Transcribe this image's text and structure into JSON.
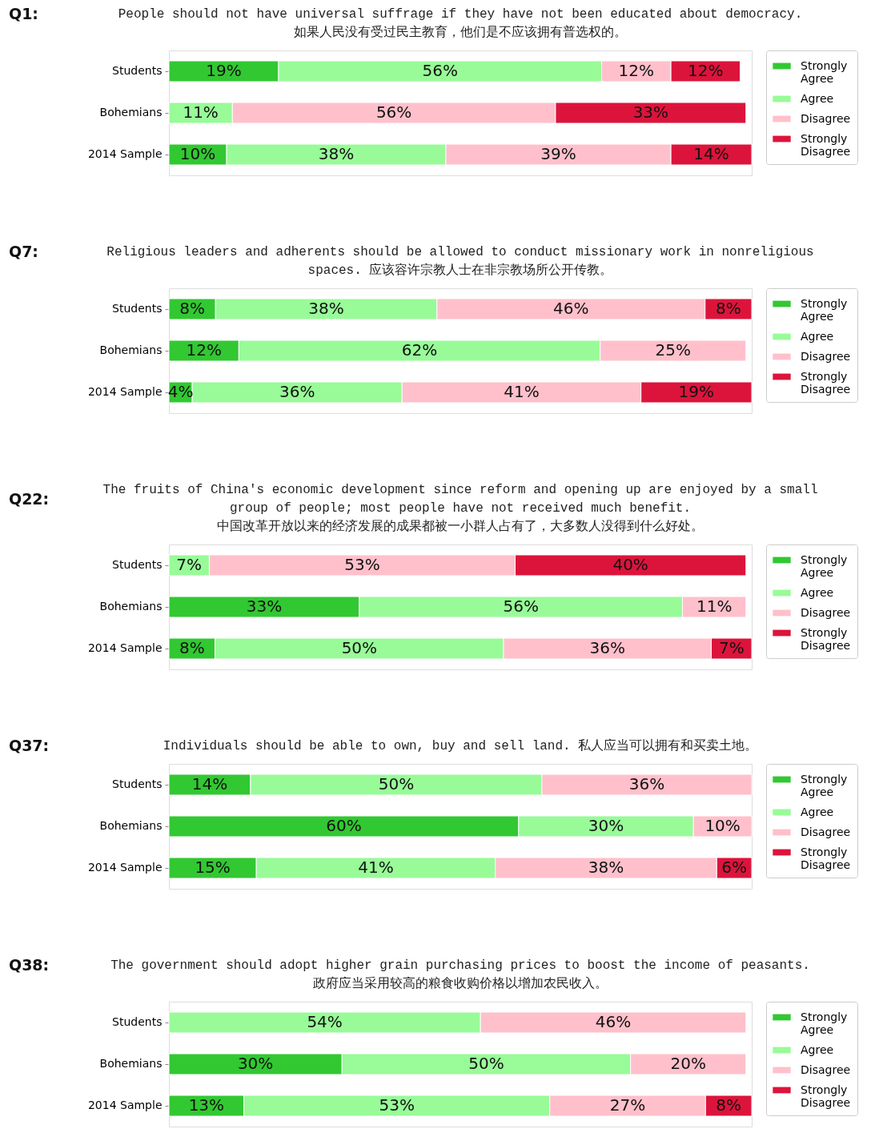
{
  "chart_data": [
    {
      "type": "bar",
      "orientation": "horizontal",
      "stacked": true,
      "legend": "right",
      "grid": false,
      "title": "Q1:",
      "subtitle": "People should not have universal suffrage if they have not been educated about democracy.\n如果人民没有受过民主教育，他们是不应该拥有普选权的。",
      "categories": [
        "Students",
        "Bohemians",
        "2014 Sample"
      ],
      "series": [
        {
          "name": "Strongly Agree",
          "color": "#32c832",
          "values": [
            19,
            null,
            10
          ],
          "value_labels": [
            "19%",
            null,
            "10%"
          ]
        },
        {
          "name": "Agree",
          "color": "#98fb98",
          "values": [
            56,
            11,
            38
          ],
          "value_labels": [
            "56%",
            "11%",
            "38%"
          ]
        },
        {
          "name": "Disagree",
          "color": "#ffc0cb",
          "values": [
            12,
            56,
            39
          ],
          "value_labels": [
            "12%",
            "56%",
            "39%"
          ]
        },
        {
          "name": "Strongly Disagree",
          "color": "#dc143c",
          "values": [
            12,
            33,
            14
          ],
          "value_labels": [
            "12%",
            "33%",
            "14%"
          ]
        }
      ]
    },
    {
      "type": "bar",
      "orientation": "horizontal",
      "stacked": true,
      "legend": "right",
      "grid": false,
      "title": "Q7:",
      "subtitle": "Religious leaders and adherents should be allowed to conduct missionary work in nonreligious\nspaces.  应该容许宗教人士在非宗教场所公开传教。",
      "categories": [
        "Students",
        "Bohemians",
        "2014 Sample"
      ],
      "series": [
        {
          "name": "Strongly Agree",
          "color": "#32c832",
          "values": [
            8,
            12,
            4
          ],
          "value_labels": [
            "8%",
            "12%",
            "4%"
          ]
        },
        {
          "name": "Agree",
          "color": "#98fb98",
          "values": [
            38,
            62,
            36
          ],
          "value_labels": [
            "38%",
            "62%",
            "36%"
          ]
        },
        {
          "name": "Disagree",
          "color": "#ffc0cb",
          "values": [
            46,
            25,
            41
          ],
          "value_labels": [
            "46%",
            "25%",
            "41%"
          ]
        },
        {
          "name": "Strongly Disagree",
          "color": "#dc143c",
          "values": [
            8,
            null,
            19
          ],
          "value_labels": [
            "8%",
            null,
            "19%"
          ]
        }
      ]
    },
    {
      "type": "bar",
      "orientation": "horizontal",
      "stacked": true,
      "legend": "right",
      "grid": false,
      "title": "Q22:",
      "subtitle": "The fruits of China's economic development since reform and opening up are enjoyed by a small\ngroup of people; most people have not received much benefit.\n中国改革开放以来的经济发展的成果都被一小群人占有了，大多数人没得到什么好处。",
      "categories": [
        "Students",
        "Bohemians",
        "2014 Sample"
      ],
      "series": [
        {
          "name": "Strongly Agree",
          "color": "#32c832",
          "values": [
            null,
            33,
            8
          ],
          "value_labels": [
            null,
            "33%",
            "8%"
          ]
        },
        {
          "name": "Agree",
          "color": "#98fb98",
          "values": [
            7,
            56,
            50
          ],
          "value_labels": [
            "7%",
            "56%",
            "50%"
          ]
        },
        {
          "name": "Disagree",
          "color": "#ffc0cb",
          "values": [
            53,
            11,
            36
          ],
          "value_labels": [
            "53%",
            "11%",
            "36%"
          ]
        },
        {
          "name": "Strongly Disagree",
          "color": "#dc143c",
          "values": [
            40,
            null,
            7
          ],
          "value_labels": [
            "40%",
            null,
            "7%"
          ]
        }
      ]
    },
    {
      "type": "bar",
      "orientation": "horizontal",
      "stacked": true,
      "legend": "right",
      "grid": false,
      "title": "Q37:",
      "subtitle": "Individuals should be able to own, buy and sell land.   私人应当可以拥有和买卖土地。",
      "categories": [
        "Students",
        "Bohemians",
        "2014 Sample"
      ],
      "series": [
        {
          "name": "Strongly Agree",
          "color": "#32c832",
          "values": [
            14,
            60,
            15
          ],
          "value_labels": [
            "14%",
            "60%",
            "15%"
          ]
        },
        {
          "name": "Agree",
          "color": "#98fb98",
          "values": [
            50,
            30,
            41
          ],
          "value_labels": [
            "50%",
            "30%",
            "41%"
          ]
        },
        {
          "name": "Disagree",
          "color": "#ffc0cb",
          "values": [
            36,
            10,
            38
          ],
          "value_labels": [
            "36%",
            "10%",
            "38%"
          ]
        },
        {
          "name": "Strongly Disagree",
          "color": "#dc143c",
          "values": [
            null,
            null,
            6
          ],
          "value_labels": [
            null,
            null,
            "6%"
          ]
        }
      ]
    },
    {
      "type": "bar",
      "orientation": "horizontal",
      "stacked": true,
      "legend": "right",
      "grid": false,
      "title": "Q38:",
      "subtitle": "The government should adopt higher grain purchasing prices to boost the income of peasants.\n政府应当采用较高的粮食收购价格以增加农民收入。",
      "categories": [
        "Students",
        "Bohemians",
        "2014 Sample"
      ],
      "series": [
        {
          "name": "Strongly Agree",
          "color": "#32c832",
          "values": [
            null,
            30,
            13
          ],
          "value_labels": [
            null,
            "30%",
            "13%"
          ]
        },
        {
          "name": "Agree",
          "color": "#98fb98",
          "values": [
            54,
            50,
            53
          ],
          "value_labels": [
            "54%",
            "50%",
            "53%"
          ]
        },
        {
          "name": "Disagree",
          "color": "#ffc0cb",
          "values": [
            46,
            20,
            27
          ],
          "value_labels": [
            "46%",
            "20%",
            "27%"
          ]
        },
        {
          "name": "Strongly Disagree",
          "color": "#dc143c",
          "values": [
            null,
            null,
            8
          ],
          "value_labels": [
            null,
            null,
            "8%"
          ]
        }
      ]
    }
  ]
}
